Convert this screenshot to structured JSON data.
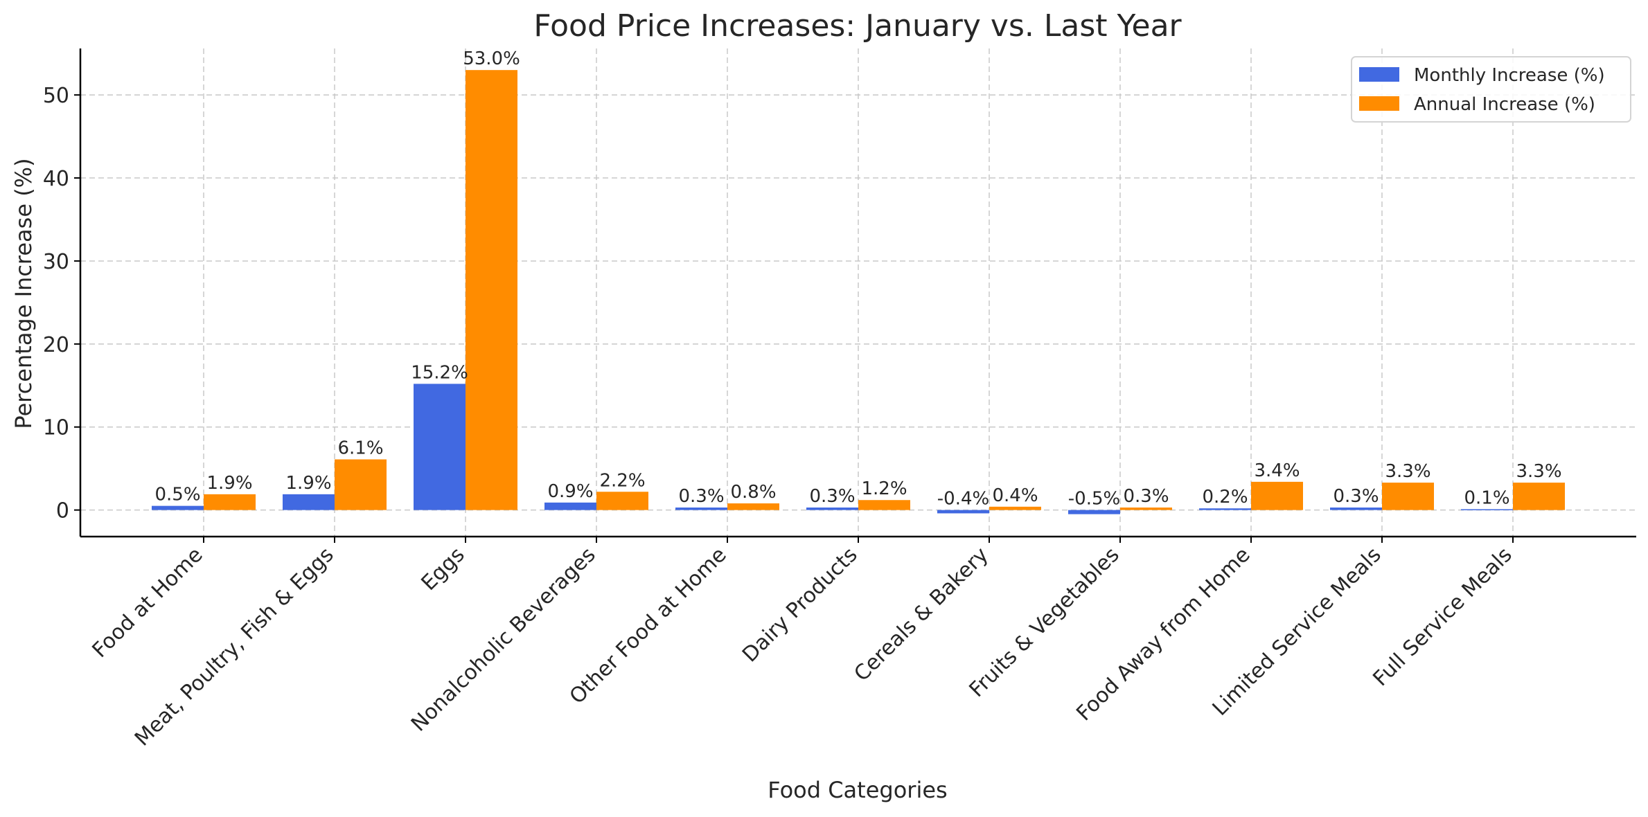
{
  "chart_data": {
    "type": "bar",
    "title": "Food Price Increases: January vs. Last Year",
    "xlabel": "Food Categories",
    "ylabel": "Percentage Increase (%)",
    "categories": [
      "Food at Home",
      "Meat, Poultry, Fish & Eggs",
      "Eggs",
      "Nonalcoholic Beverages",
      "Other Food at Home",
      "Dairy Products",
      "Cereals & Bakery",
      "Fruits & Vegetables",
      "Food Away from Home",
      "Limited Service Meals",
      "Full Service Meals"
    ],
    "series": [
      {
        "name": "Monthly Increase (%)",
        "color": "#4169e1",
        "values": [
          0.5,
          1.9,
          15.2,
          0.9,
          0.3,
          0.3,
          -0.4,
          -0.5,
          0.2,
          0.3,
          0.1
        ],
        "labels": [
          "0.5%",
          "1.9%",
          "15.2%",
          "0.9%",
          "0.3%",
          "0.3%",
          "-0.4%",
          "-0.5%",
          "0.2%",
          "0.3%",
          "0.1%"
        ]
      },
      {
        "name": "Annual Increase (%)",
        "color": "#ff8c00",
        "values": [
          1.9,
          6.1,
          53.0,
          2.2,
          0.8,
          1.2,
          0.4,
          0.3,
          3.4,
          3.3,
          3.3
        ],
        "labels": [
          "1.9%",
          "6.1%",
          "53.0%",
          "2.2%",
          "0.8%",
          "1.2%",
          "0.4%",
          "0.3%",
          "3.4%",
          "3.3%",
          "3.3%"
        ]
      }
    ],
    "yticks": [
      0,
      10,
      20,
      30,
      40,
      50
    ],
    "ylim": [
      -3.2,
      55.6
    ],
    "grid": true,
    "legend_position": "top-right"
  }
}
